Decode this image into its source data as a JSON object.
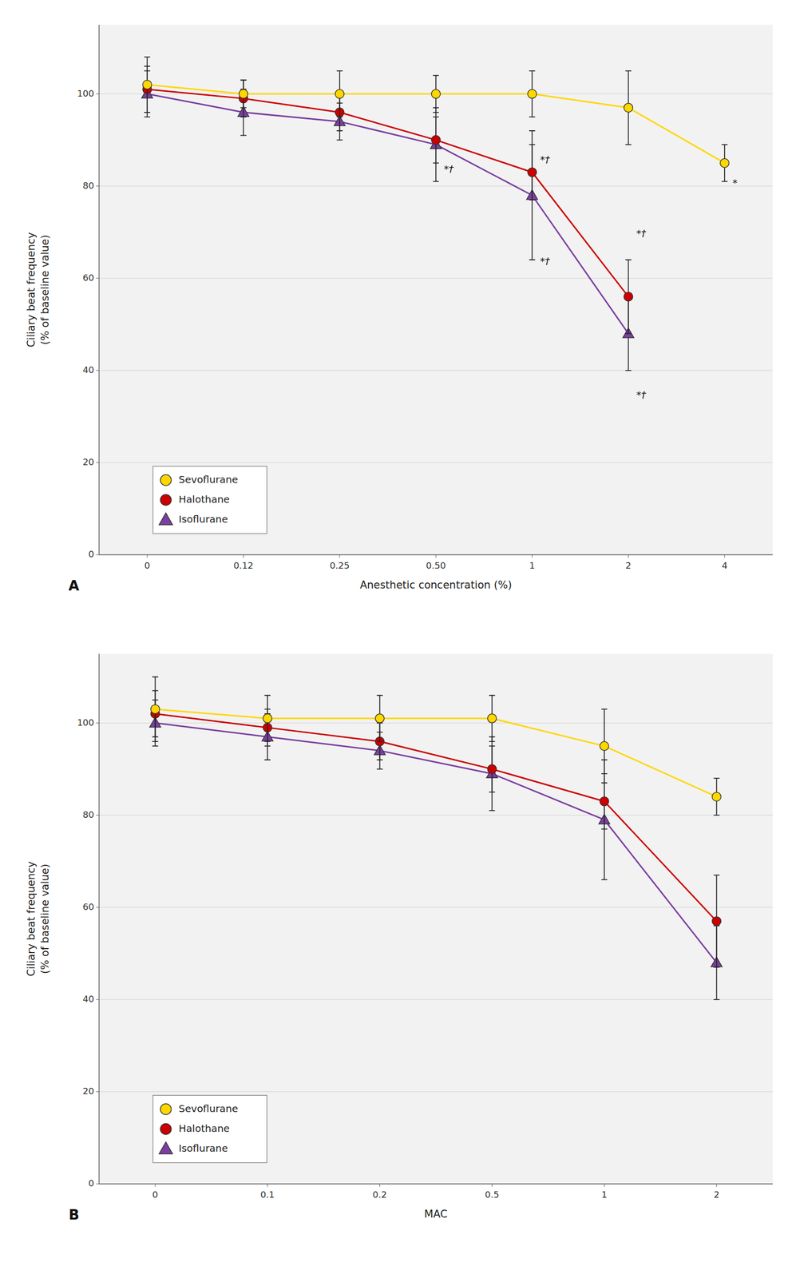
{
  "chart_data": [
    {
      "type": "line",
      "title": "A",
      "xlabel": "Anesthetic concentration (%)",
      "ylabel": "Ciliary beat frequency\n(% of baseline value)",
      "categories": [
        "0",
        "0.12",
        "0.25",
        "0.50",
        "1",
        "2",
        "4"
      ],
      "series": [
        {
          "name": "Sevoflurane",
          "color": "#FFD700",
          "marker": "circle",
          "values": [
            102,
            100,
            100,
            100,
            100,
            97,
            85
          ],
          "errors": [
            6,
            3,
            5,
            4,
            5,
            8,
            4
          ]
        },
        {
          "name": "Halothane",
          "color": "#CC0000",
          "marker": "circle",
          "values": [
            101,
            99,
            96,
            90,
            83,
            56,
            null
          ],
          "errors": [
            5,
            4,
            4,
            5,
            6,
            8,
            null
          ]
        },
        {
          "name": "Isoflurane",
          "color": "#7B3FA0",
          "marker": "triangle",
          "values": [
            100,
            96,
            94,
            89,
            78,
            48,
            null
          ],
          "errors": [
            5,
            5,
            4,
            8,
            14,
            8,
            null
          ]
        }
      ],
      "annotations": [
        {
          "text": "*†",
          "x": "0.50",
          "y": 83
        },
        {
          "text": "*†",
          "x": "1",
          "y": 85
        },
        {
          "text": "*†",
          "x": "1",
          "y": 63
        },
        {
          "text": "*†",
          "x": "2",
          "y": 69
        },
        {
          "text": "*†",
          "x": "2",
          "y": 34
        },
        {
          "text": "*",
          "x": "4",
          "y": 80
        }
      ],
      "ylim": [
        0,
        115
      ],
      "yticks": [
        0,
        20,
        40,
        60,
        80,
        100
      ],
      "grid": true,
      "legend": "lower left"
    },
    {
      "type": "line",
      "title": "B",
      "xlabel": "MAC",
      "ylabel": "Ciliary beat frequency\n(% of baseline value)",
      "categories": [
        "0",
        "0.1",
        "0.2",
        "0.5",
        "1",
        "2"
      ],
      "series": [
        {
          "name": "Sevoflurane",
          "color": "#FFD700",
          "marker": "circle",
          "values": [
            103,
            101,
            101,
            101,
            95,
            84
          ],
          "errors": [
            7,
            5,
            5,
            5,
            8,
            4
          ]
        },
        {
          "name": "Halothane",
          "color": "#CC0000",
          "marker": "circle",
          "values": [
            102,
            99,
            96,
            90,
            83,
            57
          ],
          "errors": [
            5,
            4,
            4,
            5,
            6,
            10
          ]
        },
        {
          "name": "Isoflurane",
          "color": "#7B3FA0",
          "marker": "triangle",
          "values": [
            100,
            97,
            94,
            89,
            79,
            48
          ],
          "errors": [
            5,
            5,
            4,
            8,
            13,
            8
          ]
        }
      ],
      "ylim": [
        0,
        115
      ],
      "yticks": [
        0,
        20,
        40,
        60,
        80,
        100
      ],
      "grid": true,
      "legend": "lower left"
    }
  ]
}
